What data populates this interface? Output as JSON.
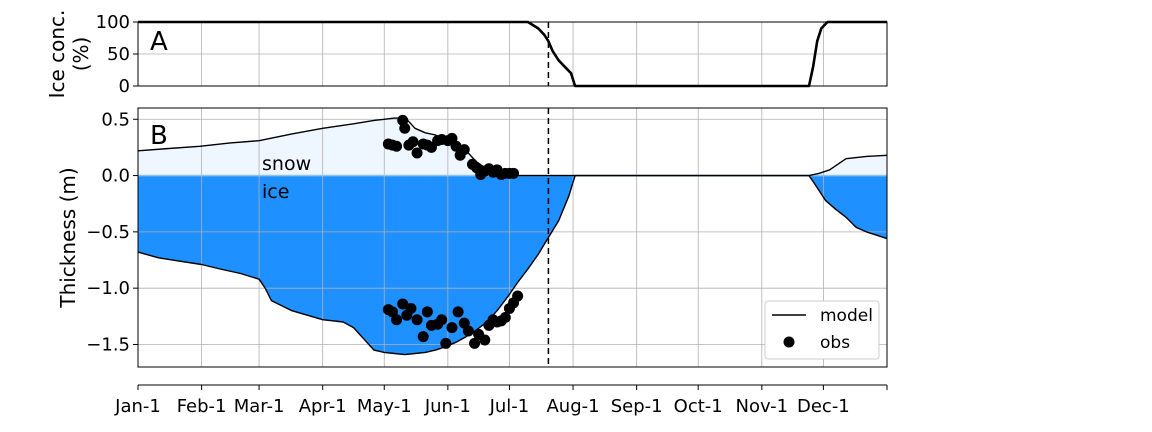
{
  "colors": {
    "ice": "#1e90ff",
    "snow": "#eef6ff",
    "line": "#000000",
    "grid": "#b0b0b0",
    "zero": "#8fc2e8"
  },
  "chart_data": [
    {
      "type": "line",
      "panel_label": "A",
      "ylabel_line1": "Ice conc.",
      "ylabel_line2": "(%)",
      "xlabel": "",
      "xlim": [
        0,
        365
      ],
      "ylim": [
        0,
        100
      ],
      "yticks": [
        0,
        50,
        100
      ],
      "ytick_labels": [
        "0",
        "50",
        "100"
      ],
      "grid": true,
      "vline_day": 200,
      "series": [
        {
          "values_x": [
            0,
            180,
            190,
            195,
            198,
            200,
            202,
            205,
            208,
            211,
            213,
            220,
            250,
            300,
            327,
            329,
            331,
            333,
            336,
            340,
            365
          ],
          "values_y": [
            100,
            100,
            100,
            90,
            80,
            70,
            55,
            40,
            30,
            20,
            0,
            0,
            0,
            0,
            0,
            30,
            70,
            90,
            100,
            100,
            100
          ]
        }
      ]
    },
    {
      "type": "area",
      "panel_label": "B",
      "ylabel": "Thickness (m)",
      "xlabel": "",
      "xlim": [
        0,
        365
      ],
      "ylim": [
        -1.7,
        0.6
      ],
      "yticks": [
        -1.5,
        -1.0,
        -0.5,
        0.0,
        0.5
      ],
      "ytick_labels": [
        "−1.5",
        "−1.0",
        "−0.5",
        "0.0",
        "0.5"
      ],
      "xtick_days": [
        0,
        31,
        59,
        90,
        120,
        151,
        181,
        212,
        243,
        273,
        304,
        334
      ],
      "xtick_labels": [
        "Jan-1",
        "Feb-1",
        "Mar-1",
        "Apr-1",
        "May-1",
        "Jun-1",
        "Jul-1",
        "Aug-1",
        "Sep-1",
        "Oct-1",
        "Nov-1",
        "Dec-1"
      ],
      "grid": true,
      "vline_day": 200,
      "annotations": {
        "snow": "snow",
        "ice": "ice"
      },
      "legend": {
        "placement": "lower-right",
        "model": "model",
        "obs": "obs"
      },
      "snow_model": {
        "x": [
          0,
          15,
          30,
          45,
          59,
          75,
          90,
          105,
          115,
          120,
          125,
          128,
          131,
          135,
          140,
          145,
          150,
          155,
          160,
          165,
          170,
          175,
          180,
          183,
          186,
          190,
          200,
          300,
          327,
          332,
          337,
          345,
          355,
          365
        ],
        "y": [
          0.22,
          0.24,
          0.26,
          0.29,
          0.31,
          0.37,
          0.42,
          0.46,
          0.49,
          0.5,
          0.51,
          0.51,
          0.5,
          0.42,
          0.38,
          0.36,
          0.3,
          0.26,
          0.22,
          0.12,
          0.06,
          0.03,
          0.01,
          0.0,
          0.0,
          0.0,
          0.0,
          0.0,
          0.0,
          0.02,
          0.05,
          0.15,
          0.17,
          0.18
        ]
      },
      "ice_model": {
        "x": [
          0,
          10,
          20,
          31,
          40,
          50,
          59,
          62,
          65,
          75,
          90,
          100,
          105,
          110,
          115,
          120,
          125,
          130,
          135,
          140,
          145,
          150,
          155,
          160,
          165,
          170,
          175,
          180,
          185,
          190,
          195,
          200,
          205,
          210,
          213,
          327,
          330,
          335,
          340,
          345,
          350,
          355,
          360,
          365
        ],
        "y": [
          -0.68,
          -0.73,
          -0.76,
          -0.79,
          -0.83,
          -0.87,
          -0.92,
          -1.0,
          -1.11,
          -1.2,
          -1.28,
          -1.3,
          -1.35,
          -1.45,
          -1.55,
          -1.57,
          -1.58,
          -1.59,
          -1.58,
          -1.57,
          -1.55,
          -1.52,
          -1.48,
          -1.43,
          -1.37,
          -1.3,
          -1.2,
          -1.08,
          -0.95,
          -0.83,
          -0.7,
          -0.55,
          -0.4,
          -0.18,
          0.0,
          0.0,
          -0.08,
          -0.22,
          -0.3,
          -0.37,
          -0.46,
          -0.5,
          -0.53,
          -0.56
        ]
      },
      "snow_obs": {
        "x": [
          122,
          124,
          126,
          129,
          130,
          132,
          134,
          136,
          139,
          141,
          143,
          146,
          148,
          151,
          153,
          155,
          157,
          159,
          163,
          165,
          167,
          169,
          171,
          173,
          175,
          177,
          179,
          181,
          183
        ],
        "y": [
          0.28,
          0.27,
          0.26,
          0.49,
          0.42,
          0.27,
          0.3,
          0.2,
          0.28,
          0.27,
          0.25,
          0.31,
          0.32,
          0.31,
          0.33,
          0.26,
          0.18,
          0.23,
          0.1,
          0.07,
          0.01,
          0.04,
          0.06,
          0.03,
          0.05,
          0.01,
          0.02,
          0.02,
          0.02
        ]
      },
      "ice_obs": {
        "x": [
          122,
          124,
          126,
          129,
          131,
          133,
          136,
          139,
          141,
          143,
          146,
          148,
          150,
          153,
          156,
          159,
          161,
          164,
          166,
          169,
          171,
          173,
          175,
          177,
          179,
          181,
          183,
          185
        ],
        "y": [
          -1.19,
          -1.21,
          -1.28,
          -1.14,
          -1.24,
          -1.18,
          -1.28,
          -1.43,
          -1.21,
          -1.33,
          -1.32,
          -1.28,
          -1.49,
          -1.35,
          -1.21,
          -1.31,
          -1.38,
          -1.49,
          -1.41,
          -1.46,
          -1.33,
          -1.28,
          -1.3,
          -1.29,
          -1.26,
          -1.18,
          -1.13,
          -1.07
        ]
      }
    }
  ]
}
